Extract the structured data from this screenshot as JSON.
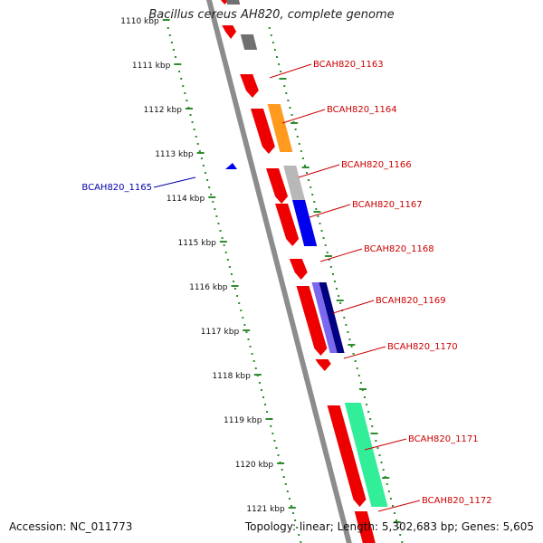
{
  "title": "Bacillus cereus AH820, complete genome",
  "footer": {
    "accession": "Accession: NC_011773",
    "summary": "Topology: linear; Length: 5,302,683 bp; Genes: 5,605"
  },
  "ticks": [
    "1110 kbp",
    "1111 kbp",
    "1112 kbp",
    "1113 kbp",
    "1114 kbp",
    "1115 kbp",
    "1116 kbp",
    "1117 kbp",
    "1118 kbp",
    "1119 kbp",
    "1120 kbp",
    "1121 kbp"
  ],
  "colors": {
    "backbone": "#8c8c8c",
    "scale_dots": "#2e8b2e",
    "gene_red": "#ee0000",
    "gene_orange": "#ff9a1f",
    "gene_gray": "#b8b8b8",
    "gene_darkgray": "#707070",
    "gene_blue": "#0000ee",
    "gene_navy": "#000080",
    "gene_violet": "#7b68ee",
    "gene_green": "#33ee99",
    "label_red": "#cc0000",
    "label_blue": "#0000aa"
  },
  "labels": [
    {
      "text": "BCAH820_1163",
      "color": "red"
    },
    {
      "text": "BCAH820_1164",
      "color": "red"
    },
    {
      "text": "BCAH820_1166",
      "color": "red"
    },
    {
      "text": "BCAH820_1167",
      "color": "red"
    },
    {
      "text": "BCAH820_1168",
      "color": "red"
    },
    {
      "text": "BCAH820_1169",
      "color": "red"
    },
    {
      "text": "BCAH820_1170",
      "color": "red"
    },
    {
      "text": "BCAH820_1171",
      "color": "red"
    },
    {
      "text": "BCAH820_1172",
      "color": "red"
    },
    {
      "text": "BCAH820_1165",
      "color": "blue"
    }
  ]
}
